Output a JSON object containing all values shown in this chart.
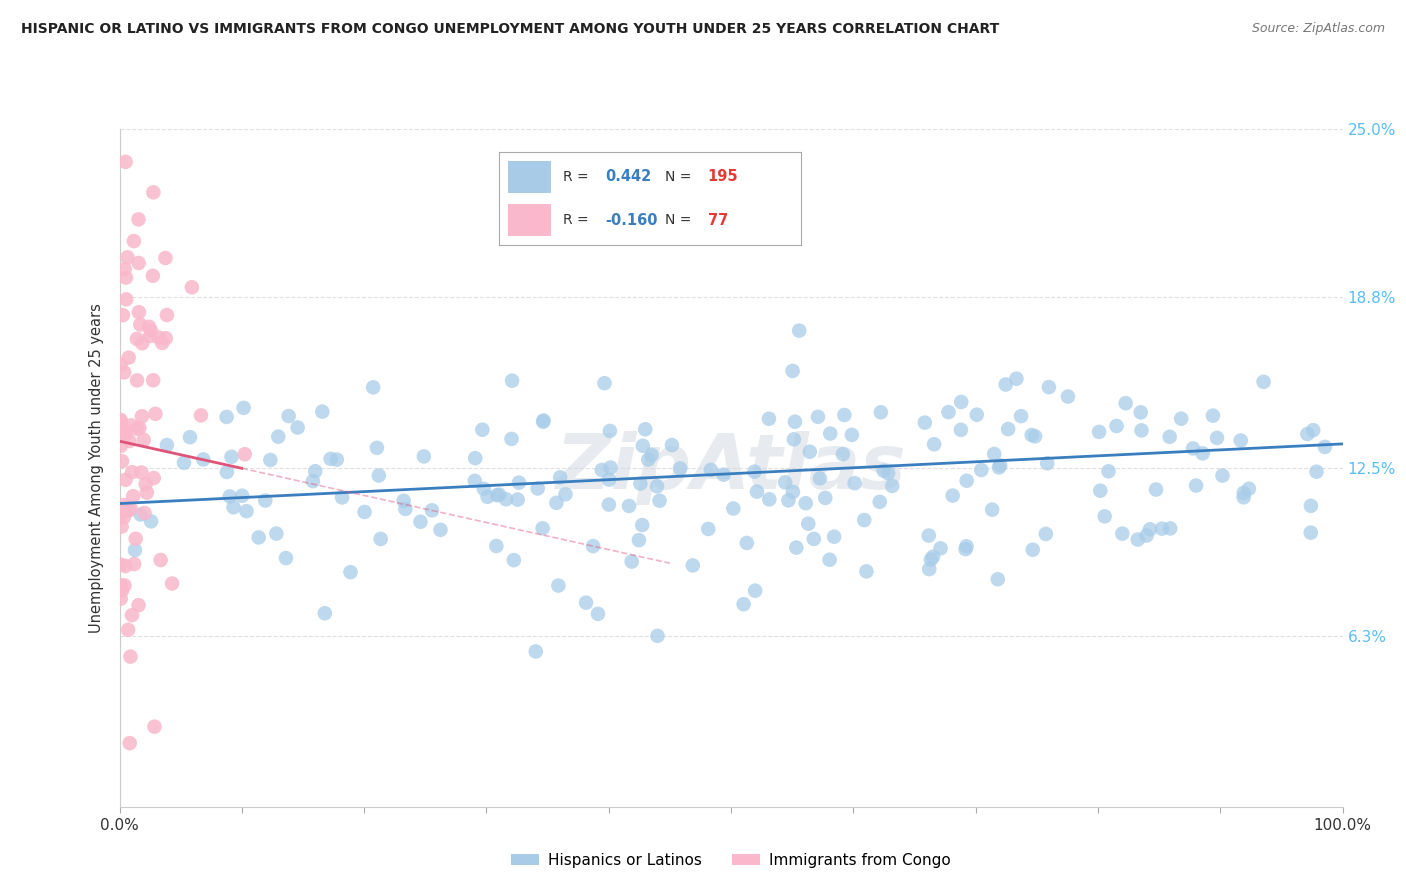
{
  "title": "HISPANIC OR LATINO VS IMMIGRANTS FROM CONGO UNEMPLOYMENT AMONG YOUTH UNDER 25 YEARS CORRELATION CHART",
  "source": "Source: ZipAtlas.com",
  "ylabel": "Unemployment Among Youth under 25 years",
  "xlim": [
    0,
    100
  ],
  "ylim": [
    0,
    25
  ],
  "ytick_vals": [
    6.3,
    12.5,
    18.8,
    25.0
  ],
  "ytick_labels_right": [
    "6.3%",
    "12.5%",
    "18.8%",
    "25.0%"
  ],
  "xtick_vals": [
    0,
    10,
    20,
    30,
    40,
    50,
    60,
    70,
    80,
    90,
    100
  ],
  "blue_color": "#a8cce8",
  "pink_color": "#f9b8cc",
  "blue_line_color": "#3a7ebf",
  "pink_line_color": "#e0547a",
  "legend_blue_label": "Hispanics or Latinos",
  "legend_pink_label": "Immigrants from Congo",
  "R_blue": 0.442,
  "N_blue": 195,
  "R_pink": -0.16,
  "N_pink": 77,
  "blue_slope": 0.022,
  "blue_intercept": 11.2,
  "pink_slope": -0.1,
  "pink_intercept": 13.5,
  "watermark": "ZipAtlas",
  "right_tick_color": "#5bbcf5",
  "grid_color": "#e0e0e0",
  "title_color": "#222222",
  "source_color": "#777777"
}
